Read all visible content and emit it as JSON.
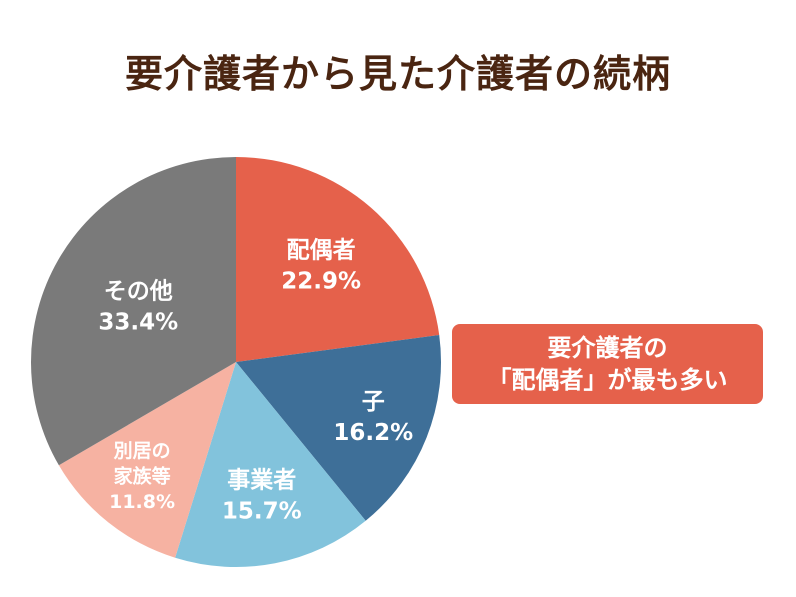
{
  "title": "要介護者から見た介護者の続柄",
  "callout": {
    "line1": "要介護者の",
    "line2": "「配偶者」が最も多い"
  },
  "chart_data": {
    "type": "pie",
    "title": "要介護者から見た介護者の続柄",
    "unit": "%",
    "start_angle_deg": 0,
    "direction": "clockwise",
    "slices": [
      {
        "label": "配偶者",
        "value": 22.9,
        "value_text": "22.9%",
        "color": "#e5614b",
        "label_color": "#ffffff"
      },
      {
        "label": "子",
        "value": 16.2,
        "value_text": "16.2%",
        "color": "#3e6f98",
        "label_color": "#ffffff"
      },
      {
        "label": "事業者",
        "value": 15.7,
        "value_text": "15.7%",
        "color": "#82c3dc",
        "label_color": "#ffffff"
      },
      {
        "label": "別居の\n家族等",
        "value": 11.8,
        "value_text": "11.8%",
        "color": "#f6b2a2",
        "label_color": "#ffffff"
      },
      {
        "label": "その他",
        "value": 33.4,
        "value_text": "33.4%",
        "color": "#7a7a7a",
        "label_color": "#ffffff"
      }
    ]
  }
}
